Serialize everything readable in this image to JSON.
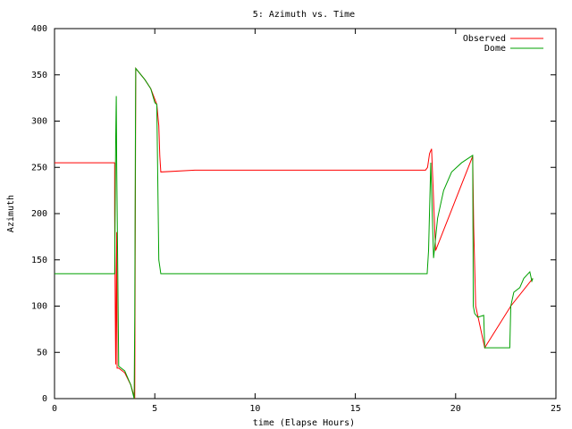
{
  "chart_data": {
    "type": "line",
    "title": "5: Azimuth vs. Time",
    "x_label": "time (Elapse Hours)",
    "y_label": "Azimuth",
    "xlim": [
      0,
      25
    ],
    "xticks": [
      0,
      5,
      10,
      15,
      20,
      25
    ],
    "ylim": [
      0,
      400
    ],
    "yticks": [
      0,
      50,
      100,
      150,
      200,
      250,
      300,
      350,
      400
    ],
    "legend": "top-right",
    "series": [
      {
        "name": "Observed",
        "color": "#ff0000",
        "x": [
          0,
          3.0,
          3.0,
          3.03,
          3.05,
          3.1,
          3.12,
          3.2,
          3.5,
          3.8,
          4.0,
          4.05,
          4.5,
          4.8,
          5.1,
          5.2,
          5.25,
          5.3,
          7,
          15,
          18.5,
          18.6,
          18.7,
          18.8,
          19.0,
          20.85,
          20.9,
          21.0,
          21.45,
          22.75,
          23.85
        ],
        "values": [
          255,
          255,
          200,
          90,
          37,
          180,
          33,
          33,
          28,
          15,
          0,
          357,
          345,
          335,
          318,
          295,
          262,
          245,
          247,
          247,
          247,
          250,
          265,
          270,
          160,
          262,
          185,
          100,
          55,
          100,
          130
        ]
      },
      {
        "name": "Dome",
        "color": "#00a000",
        "x": [
          0,
          3.0,
          3.05,
          3.08,
          3.1,
          3.2,
          3.5,
          3.8,
          3.97,
          4.0,
          4.03,
          4.05,
          4.5,
          4.8,
          5.0,
          5.1,
          5.2,
          5.3,
          18.58,
          18.65,
          18.76,
          18.9,
          19.1,
          19.4,
          19.8,
          20.3,
          20.85,
          20.88,
          20.95,
          21.1,
          21.4,
          21.45,
          22.7,
          22.75,
          22.9,
          23.2,
          23.4,
          23.7,
          23.8,
          23.85
        ],
        "values": [
          135,
          135,
          280,
          327,
          255,
          35,
          30,
          15,
          0,
          90,
          270,
          357,
          345,
          335,
          320,
          318,
          150,
          135,
          135,
          160,
          255,
          152,
          195,
          225,
          245,
          255,
          263,
          100,
          92,
          88,
          90,
          55,
          55,
          100,
          115,
          120,
          130,
          137,
          127,
          130
        ]
      }
    ]
  }
}
